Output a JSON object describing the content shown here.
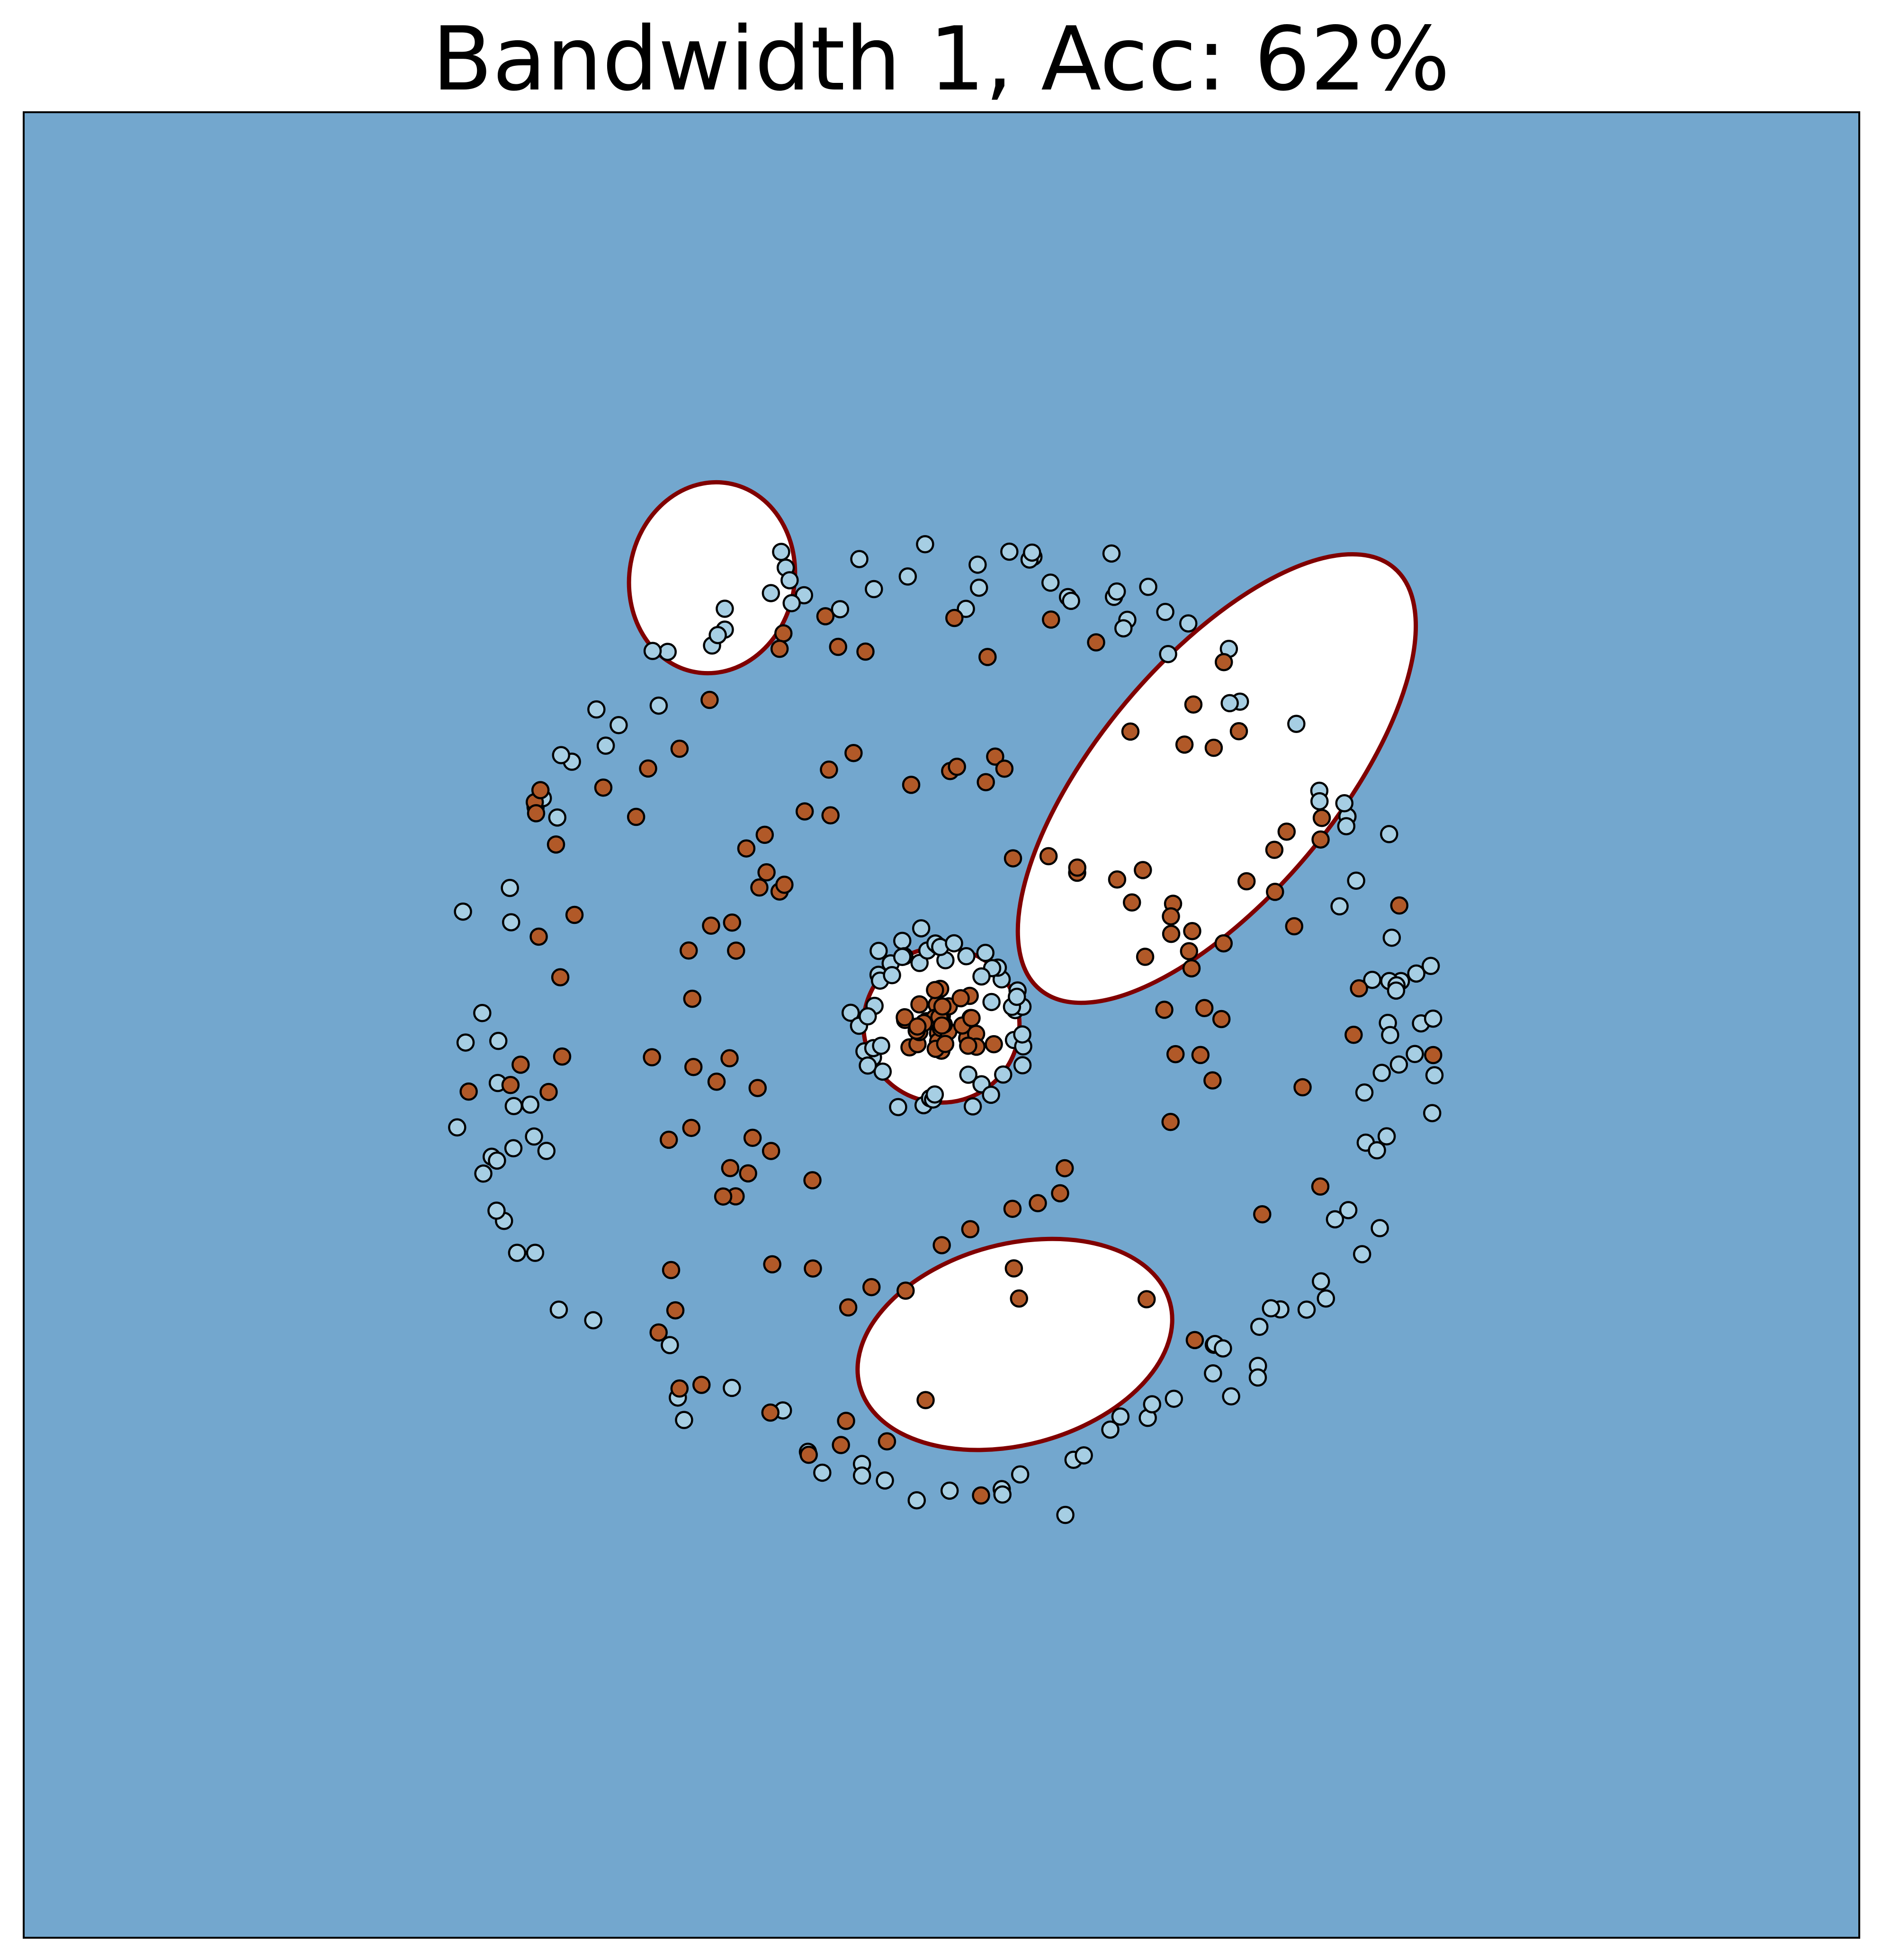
{
  "chart_data": {
    "type": "scatter",
    "title": "Bandwidth 1, Acc: 62%",
    "xlabel": "",
    "ylabel": "",
    "xlim": [
      -1.0,
      1.0
    ],
    "ylim": [
      -1.0,
      1.0
    ],
    "grid": false,
    "ticks": false,
    "background_color": "#73a7ce",
    "region_color": "#ffffff",
    "boundary_color": "#800000",
    "decision_regions": [
      {
        "shape": "ellipse",
        "cx": 0.0,
        "cy": 0.0,
        "rx": 0.085,
        "ry": 0.085,
        "rotate": 0
      },
      {
        "shape": "ellipse",
        "cx": -0.25,
        "cy": 0.49,
        "rx": 0.09,
        "ry": 0.105,
        "rotate": 10
      },
      {
        "shape": "ellipse",
        "cx": 0.3,
        "cy": 0.27,
        "rx": 0.3,
        "ry": 0.13,
        "rotate": -50
      },
      {
        "shape": "ellipse",
        "cx": 0.08,
        "cy": -0.35,
        "rx": 0.175,
        "ry": 0.11,
        "rotate": -15
      }
    ],
    "series": [
      {
        "color": "#a6cee3",
        "rings": [
          {
            "r_mean": 0.087,
            "count": 52,
            "jitter": 0.01,
            "seed": 11
          },
          {
            "r_mean": 0.5,
            "count": 140,
            "jitter": 0.022,
            "seed": 12
          }
        ]
      },
      {
        "color": "#b15928",
        "rings": [
          {
            "r_mean": 0.03,
            "count": 40,
            "jitter": 0.015,
            "seed": 21
          },
          {
            "r_mean": 0.27,
            "count": 70,
            "jitter": 0.03,
            "seed": 22
          },
          {
            "r_mean": 0.45,
            "count": 60,
            "jitter": 0.04,
            "seed": 23
          }
        ]
      }
    ]
  }
}
